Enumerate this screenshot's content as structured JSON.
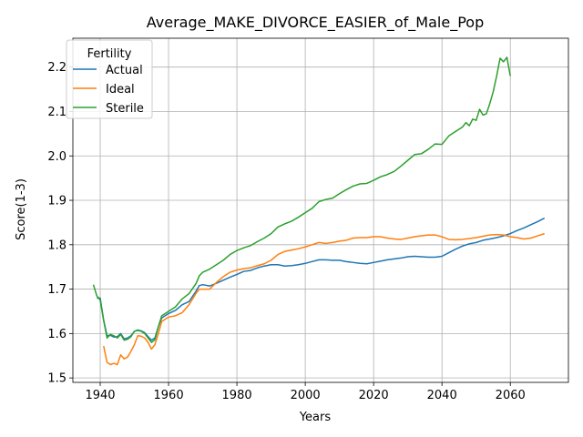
{
  "chart_data": {
    "type": "line",
    "title": "Average_MAKE_DIVORCE_EASIER_of_Male_Pop",
    "xlabel": "Years",
    "ylabel": "Score(1-3)",
    "xlim": [
      1932,
      2077
    ],
    "ylim": [
      1.49,
      2.265
    ],
    "x_ticks": [
      1940,
      1960,
      1980,
      2000,
      2020,
      2040,
      2060
    ],
    "y_ticks": [
      1.5,
      1.6,
      1.7,
      1.8,
      1.9,
      2.0,
      2.1,
      2.2
    ],
    "grid": true,
    "legend": {
      "title": "Fertility",
      "placement": "top-left"
    },
    "series": [
      {
        "name": "Actual",
        "color": "#1f77b4",
        "points": [
          [
            1939,
            1.68
          ],
          [
            1940,
            1.68
          ],
          [
            1941,
            1.63
          ],
          [
            1942,
            1.595
          ],
          [
            1943,
            1.596
          ],
          [
            1944,
            1.592
          ],
          [
            1945,
            1.593
          ],
          [
            1946,
            1.6
          ],
          [
            1947,
            1.588
          ],
          [
            1948,
            1.59
          ],
          [
            1949,
            1.595
          ],
          [
            1950,
            1.605
          ],
          [
            1951,
            1.608
          ],
          [
            1952,
            1.606
          ],
          [
            1953,
            1.602
          ],
          [
            1954,
            1.593
          ],
          [
            1955,
            1.585
          ],
          [
            1956,
            1.59
          ],
          [
            1957,
            1.615
          ],
          [
            1958,
            1.635
          ],
          [
            1960,
            1.645
          ],
          [
            1962,
            1.652
          ],
          [
            1964,
            1.665
          ],
          [
            1966,
            1.672
          ],
          [
            1968,
            1.695
          ],
          [
            1969,
            1.708
          ],
          [
            1970,
            1.71
          ],
          [
            1972,
            1.707
          ],
          [
            1974,
            1.713
          ],
          [
            1976,
            1.72
          ],
          [
            1978,
            1.727
          ],
          [
            1980,
            1.733
          ],
          [
            1982,
            1.74
          ],
          [
            1984,
            1.742
          ],
          [
            1986,
            1.748
          ],
          [
            1988,
            1.752
          ],
          [
            1990,
            1.755
          ],
          [
            1992,
            1.755
          ],
          [
            1994,
            1.752
          ],
          [
            1996,
            1.753
          ],
          [
            1998,
            1.755
          ],
          [
            2000,
            1.758
          ],
          [
            2002,
            1.762
          ],
          [
            2004,
            1.766
          ],
          [
            2006,
            1.766
          ],
          [
            2008,
            1.765
          ],
          [
            2010,
            1.765
          ],
          [
            2012,
            1.762
          ],
          [
            2014,
            1.76
          ],
          [
            2016,
            1.758
          ],
          [
            2018,
            1.757
          ],
          [
            2020,
            1.76
          ],
          [
            2022,
            1.763
          ],
          [
            2024,
            1.766
          ],
          [
            2026,
            1.768
          ],
          [
            2028,
            1.77
          ],
          [
            2030,
            1.773
          ],
          [
            2032,
            1.774
          ],
          [
            2034,
            1.773
          ],
          [
            2036,
            1.772
          ],
          [
            2038,
            1.772
          ],
          [
            2040,
            1.774
          ],
          [
            2042,
            1.782
          ],
          [
            2044,
            1.79
          ],
          [
            2046,
            1.797
          ],
          [
            2048,
            1.802
          ],
          [
            2050,
            1.805
          ],
          [
            2052,
            1.81
          ],
          [
            2054,
            1.813
          ],
          [
            2056,
            1.816
          ],
          [
            2058,
            1.82
          ],
          [
            2060,
            1.825
          ],
          [
            2062,
            1.832
          ],
          [
            2064,
            1.838
          ],
          [
            2066,
            1.845
          ],
          [
            2068,
            1.852
          ],
          [
            2070,
            1.86
          ]
        ]
      },
      {
        "name": "Ideal",
        "color": "#ff7f0e",
        "points": [
          [
            1941,
            1.572
          ],
          [
            1942,
            1.535
          ],
          [
            1943,
            1.53
          ],
          [
            1944,
            1.533
          ],
          [
            1945,
            1.53
          ],
          [
            1946,
            1.552
          ],
          [
            1947,
            1.543
          ],
          [
            1948,
            1.547
          ],
          [
            1949,
            1.56
          ],
          [
            1950,
            1.575
          ],
          [
            1951,
            1.595
          ],
          [
            1952,
            1.594
          ],
          [
            1953,
            1.59
          ],
          [
            1954,
            1.58
          ],
          [
            1955,
            1.565
          ],
          [
            1956,
            1.575
          ],
          [
            1957,
            1.6
          ],
          [
            1958,
            1.627
          ],
          [
            1960,
            1.637
          ],
          [
            1962,
            1.64
          ],
          [
            1964,
            1.647
          ],
          [
            1966,
            1.665
          ],
          [
            1968,
            1.69
          ],
          [
            1969,
            1.7
          ],
          [
            1970,
            1.7
          ],
          [
            1972,
            1.7
          ],
          [
            1974,
            1.715
          ],
          [
            1976,
            1.728
          ],
          [
            1978,
            1.738
          ],
          [
            1980,
            1.743
          ],
          [
            1982,
            1.746
          ],
          [
            1984,
            1.748
          ],
          [
            1986,
            1.753
          ],
          [
            1988,
            1.757
          ],
          [
            1990,
            1.765
          ],
          [
            1992,
            1.778
          ],
          [
            1994,
            1.785
          ],
          [
            1996,
            1.788
          ],
          [
            1998,
            1.791
          ],
          [
            2000,
            1.795
          ],
          [
            2002,
            1.8
          ],
          [
            2004,
            1.805
          ],
          [
            2006,
            1.803
          ],
          [
            2008,
            1.805
          ],
          [
            2010,
            1.808
          ],
          [
            2012,
            1.81
          ],
          [
            2014,
            1.815
          ],
          [
            2016,
            1.816
          ],
          [
            2018,
            1.816
          ],
          [
            2020,
            1.818
          ],
          [
            2022,
            1.818
          ],
          [
            2024,
            1.815
          ],
          [
            2026,
            1.813
          ],
          [
            2028,
            1.812
          ],
          [
            2030,
            1.815
          ],
          [
            2032,
            1.818
          ],
          [
            2034,
            1.82
          ],
          [
            2036,
            1.822
          ],
          [
            2038,
            1.822
          ],
          [
            2040,
            1.818
          ],
          [
            2042,
            1.812
          ],
          [
            2044,
            1.811
          ],
          [
            2046,
            1.812
          ],
          [
            2048,
            1.814
          ],
          [
            2050,
            1.816
          ],
          [
            2052,
            1.819
          ],
          [
            2054,
            1.822
          ],
          [
            2056,
            1.823
          ],
          [
            2058,
            1.822
          ],
          [
            2060,
            1.818
          ],
          [
            2062,
            1.816
          ],
          [
            2064,
            1.813
          ],
          [
            2066,
            1.815
          ],
          [
            2068,
            1.82
          ],
          [
            2070,
            1.825
          ]
        ]
      },
      {
        "name": "Sterile",
        "color": "#2ca02c",
        "points": [
          [
            1938,
            1.71
          ],
          [
            1939,
            1.685
          ],
          [
            1940,
            1.675
          ],
          [
            1941,
            1.63
          ],
          [
            1942,
            1.59
          ],
          [
            1943,
            1.598
          ],
          [
            1944,
            1.595
          ],
          [
            1945,
            1.59
          ],
          [
            1946,
            1.598
          ],
          [
            1947,
            1.585
          ],
          [
            1948,
            1.587
          ],
          [
            1949,
            1.593
          ],
          [
            1950,
            1.605
          ],
          [
            1951,
            1.607
          ],
          [
            1952,
            1.605
          ],
          [
            1953,
            1.6
          ],
          [
            1954,
            1.59
          ],
          [
            1955,
            1.58
          ],
          [
            1956,
            1.586
          ],
          [
            1957,
            1.615
          ],
          [
            1958,
            1.64
          ],
          [
            1960,
            1.65
          ],
          [
            1962,
            1.66
          ],
          [
            1964,
            1.678
          ],
          [
            1966,
            1.69
          ],
          [
            1968,
            1.712
          ],
          [
            1969,
            1.73
          ],
          [
            1970,
            1.738
          ],
          [
            1972,
            1.745
          ],
          [
            1974,
            1.755
          ],
          [
            1976,
            1.765
          ],
          [
            1978,
            1.778
          ],
          [
            1980,
            1.787
          ],
          [
            1982,
            1.793
          ],
          [
            1984,
            1.798
          ],
          [
            1986,
            1.807
          ],
          [
            1988,
            1.815
          ],
          [
            1990,
            1.825
          ],
          [
            1992,
            1.84
          ],
          [
            1994,
            1.847
          ],
          [
            1996,
            1.853
          ],
          [
            1998,
            1.862
          ],
          [
            2000,
            1.872
          ],
          [
            2002,
            1.882
          ],
          [
            2004,
            1.897
          ],
          [
            2006,
            1.902
          ],
          [
            2008,
            1.905
          ],
          [
            2010,
            1.915
          ],
          [
            2012,
            1.924
          ],
          [
            2014,
            1.932
          ],
          [
            2016,
            1.937
          ],
          [
            2018,
            1.938
          ],
          [
            2020,
            1.945
          ],
          [
            2022,
            1.953
          ],
          [
            2024,
            1.958
          ],
          [
            2026,
            1.965
          ],
          [
            2028,
            1.977
          ],
          [
            2030,
            1.99
          ],
          [
            2032,
            2.003
          ],
          [
            2034,
            2.005
          ],
          [
            2036,
            2.015
          ],
          [
            2038,
            2.027
          ],
          [
            2040,
            2.026
          ],
          [
            2042,
            2.045
          ],
          [
            2044,
            2.055
          ],
          [
            2046,
            2.065
          ],
          [
            2047,
            2.075
          ],
          [
            2048,
            2.068
          ],
          [
            2049,
            2.083
          ],
          [
            2050,
            2.08
          ],
          [
            2051,
            2.105
          ],
          [
            2052,
            2.092
          ],
          [
            2053,
            2.095
          ],
          [
            2054,
            2.118
          ],
          [
            2055,
            2.145
          ],
          [
            2056,
            2.18
          ],
          [
            2057,
            2.22
          ],
          [
            2058,
            2.212
          ],
          [
            2059,
            2.222
          ],
          [
            2060,
            2.18
          ]
        ]
      }
    ]
  }
}
